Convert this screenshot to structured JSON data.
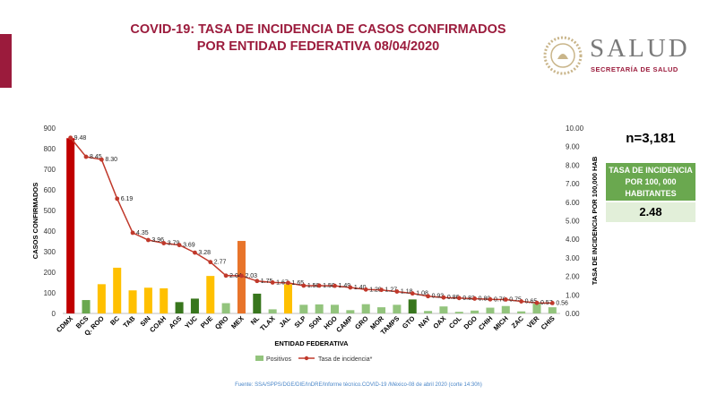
{
  "title_line1": "COVID-19: TASA DE INCIDENCIA DE CASOS CONFIRMADOS",
  "title_line2": "POR ENTIDAD FEDERATIVA 08/04/2020",
  "logo": {
    "brand": "SALUD",
    "subtitle": "SECRETARÍA DE SALUD"
  },
  "summary": {
    "n_label": "n=3,181",
    "rate_label": "TASA DE INCIDENCIA POR 100, 000 HABITANTES",
    "rate_value": "2.48"
  },
  "source": "Fuente: SSA/SPPS/DGE/DIE/InDRE/Informe técnico.COVID-19 /México-08 de abril 2020 (corte 14:30h)",
  "colors": {
    "accent": "#9b1b3c",
    "green": "#6aa84f",
    "light_green": "#93c47d",
    "line": "#c0392b"
  },
  "chart_data": {
    "type": "bar",
    "xlabel": "ENTIDAD FEDERATIVA",
    "ylabel": "CASOS CONFIRMADOS",
    "y2label": "TASA DE INCIDENCIA POR 100,000 HAB",
    "ylim": [
      0,
      900
    ],
    "y2lim": [
      0,
      10
    ],
    "y_ticks": [
      "0",
      "100",
      "200",
      "300",
      "400",
      "500",
      "600",
      "700",
      "800",
      "900"
    ],
    "y2_ticks": [
      "0.00",
      "1.00",
      "2.00",
      "3.00",
      "4.00",
      "5.00",
      "6.00",
      "7.00",
      "8.00",
      "9.00",
      "10.00"
    ],
    "categories": [
      "CDMX",
      "BCS",
      "Q. ROO",
      "BC",
      "TAB",
      "SIN",
      "COAH",
      "AGS",
      "YUC",
      "PUE",
      "QRO",
      "MEX",
      "NL",
      "TLAX",
      "JAL",
      "SLP",
      "SON",
      "HGO",
      "CAMP",
      "GRO",
      "MOR",
      "TAMPS",
      "GTO",
      "NAY",
      "OAX",
      "COL",
      "DGO",
      "CHIH",
      "MICH",
      "ZAC",
      "VER",
      "CHIS"
    ],
    "bar_colors": [
      "#c00000",
      "#6aa84f",
      "#ffc000",
      "#ffc000",
      "#ffc000",
      "#ffc000",
      "#ffc000",
      "#38761d",
      "#38761d",
      "#ffc000",
      "#93c47d",
      "#e8742a",
      "#38761d",
      "#93c47d",
      "#ffc000",
      "#93c47d",
      "#93c47d",
      "#93c47d",
      "#93c47d",
      "#93c47d",
      "#93c47d",
      "#93c47d",
      "#38761d",
      "#93c47d",
      "#93c47d",
      "#93c47d",
      "#93c47d",
      "#93c47d",
      "#93c47d",
      "#93c47d",
      "#93c47d",
      "#93c47d"
    ],
    "series": [
      {
        "name": "Positivos",
        "type": "bar",
        "axis": "left",
        "values": [
          851,
          65,
          142,
          222,
          112,
          125,
          122,
          55,
          72,
          182,
          50,
          352,
          96,
          20,
          142,
          42,
          44,
          42,
          16,
          45,
          30,
          42,
          68,
          12,
          34,
          8,
          14,
          28,
          36,
          10,
          48,
          30
        ]
      },
      {
        "name": "Tasa de incidencia*",
        "type": "line",
        "axis": "right",
        "values": [
          9.48,
          8.45,
          8.3,
          6.19,
          4.35,
          3.96,
          3.79,
          3.69,
          3.28,
          2.77,
          2.04,
          2.03,
          1.75,
          1.67,
          1.65,
          1.5,
          1.5,
          1.49,
          1.4,
          1.29,
          1.27,
          1.18,
          1.08,
          0.93,
          0.86,
          0.83,
          0.8,
          0.76,
          0.75,
          0.65,
          0.57,
          0.56
        ],
        "labels": [
          "9.48",
          "8.45",
          "8.30",
          "6.19",
          "4.35",
          "3.96",
          "3.79",
          "3.69",
          "3.28",
          "2.77",
          "2.04",
          "2.03",
          "1.75",
          "1.67",
          "1.65",
          "1.50",
          "1.50",
          "1.49",
          "1.40",
          "1.29",
          "1.27",
          "1.18",
          "1.08",
          "0.93",
          "0.86",
          "0.83",
          "0.80",
          "0.76",
          "0.75",
          "0.65",
          "0.57",
          "0.56"
        ]
      }
    ],
    "legend": [
      "Positivos",
      "Tasa de incidencia*"
    ],
    "legend_position": "bottom"
  }
}
